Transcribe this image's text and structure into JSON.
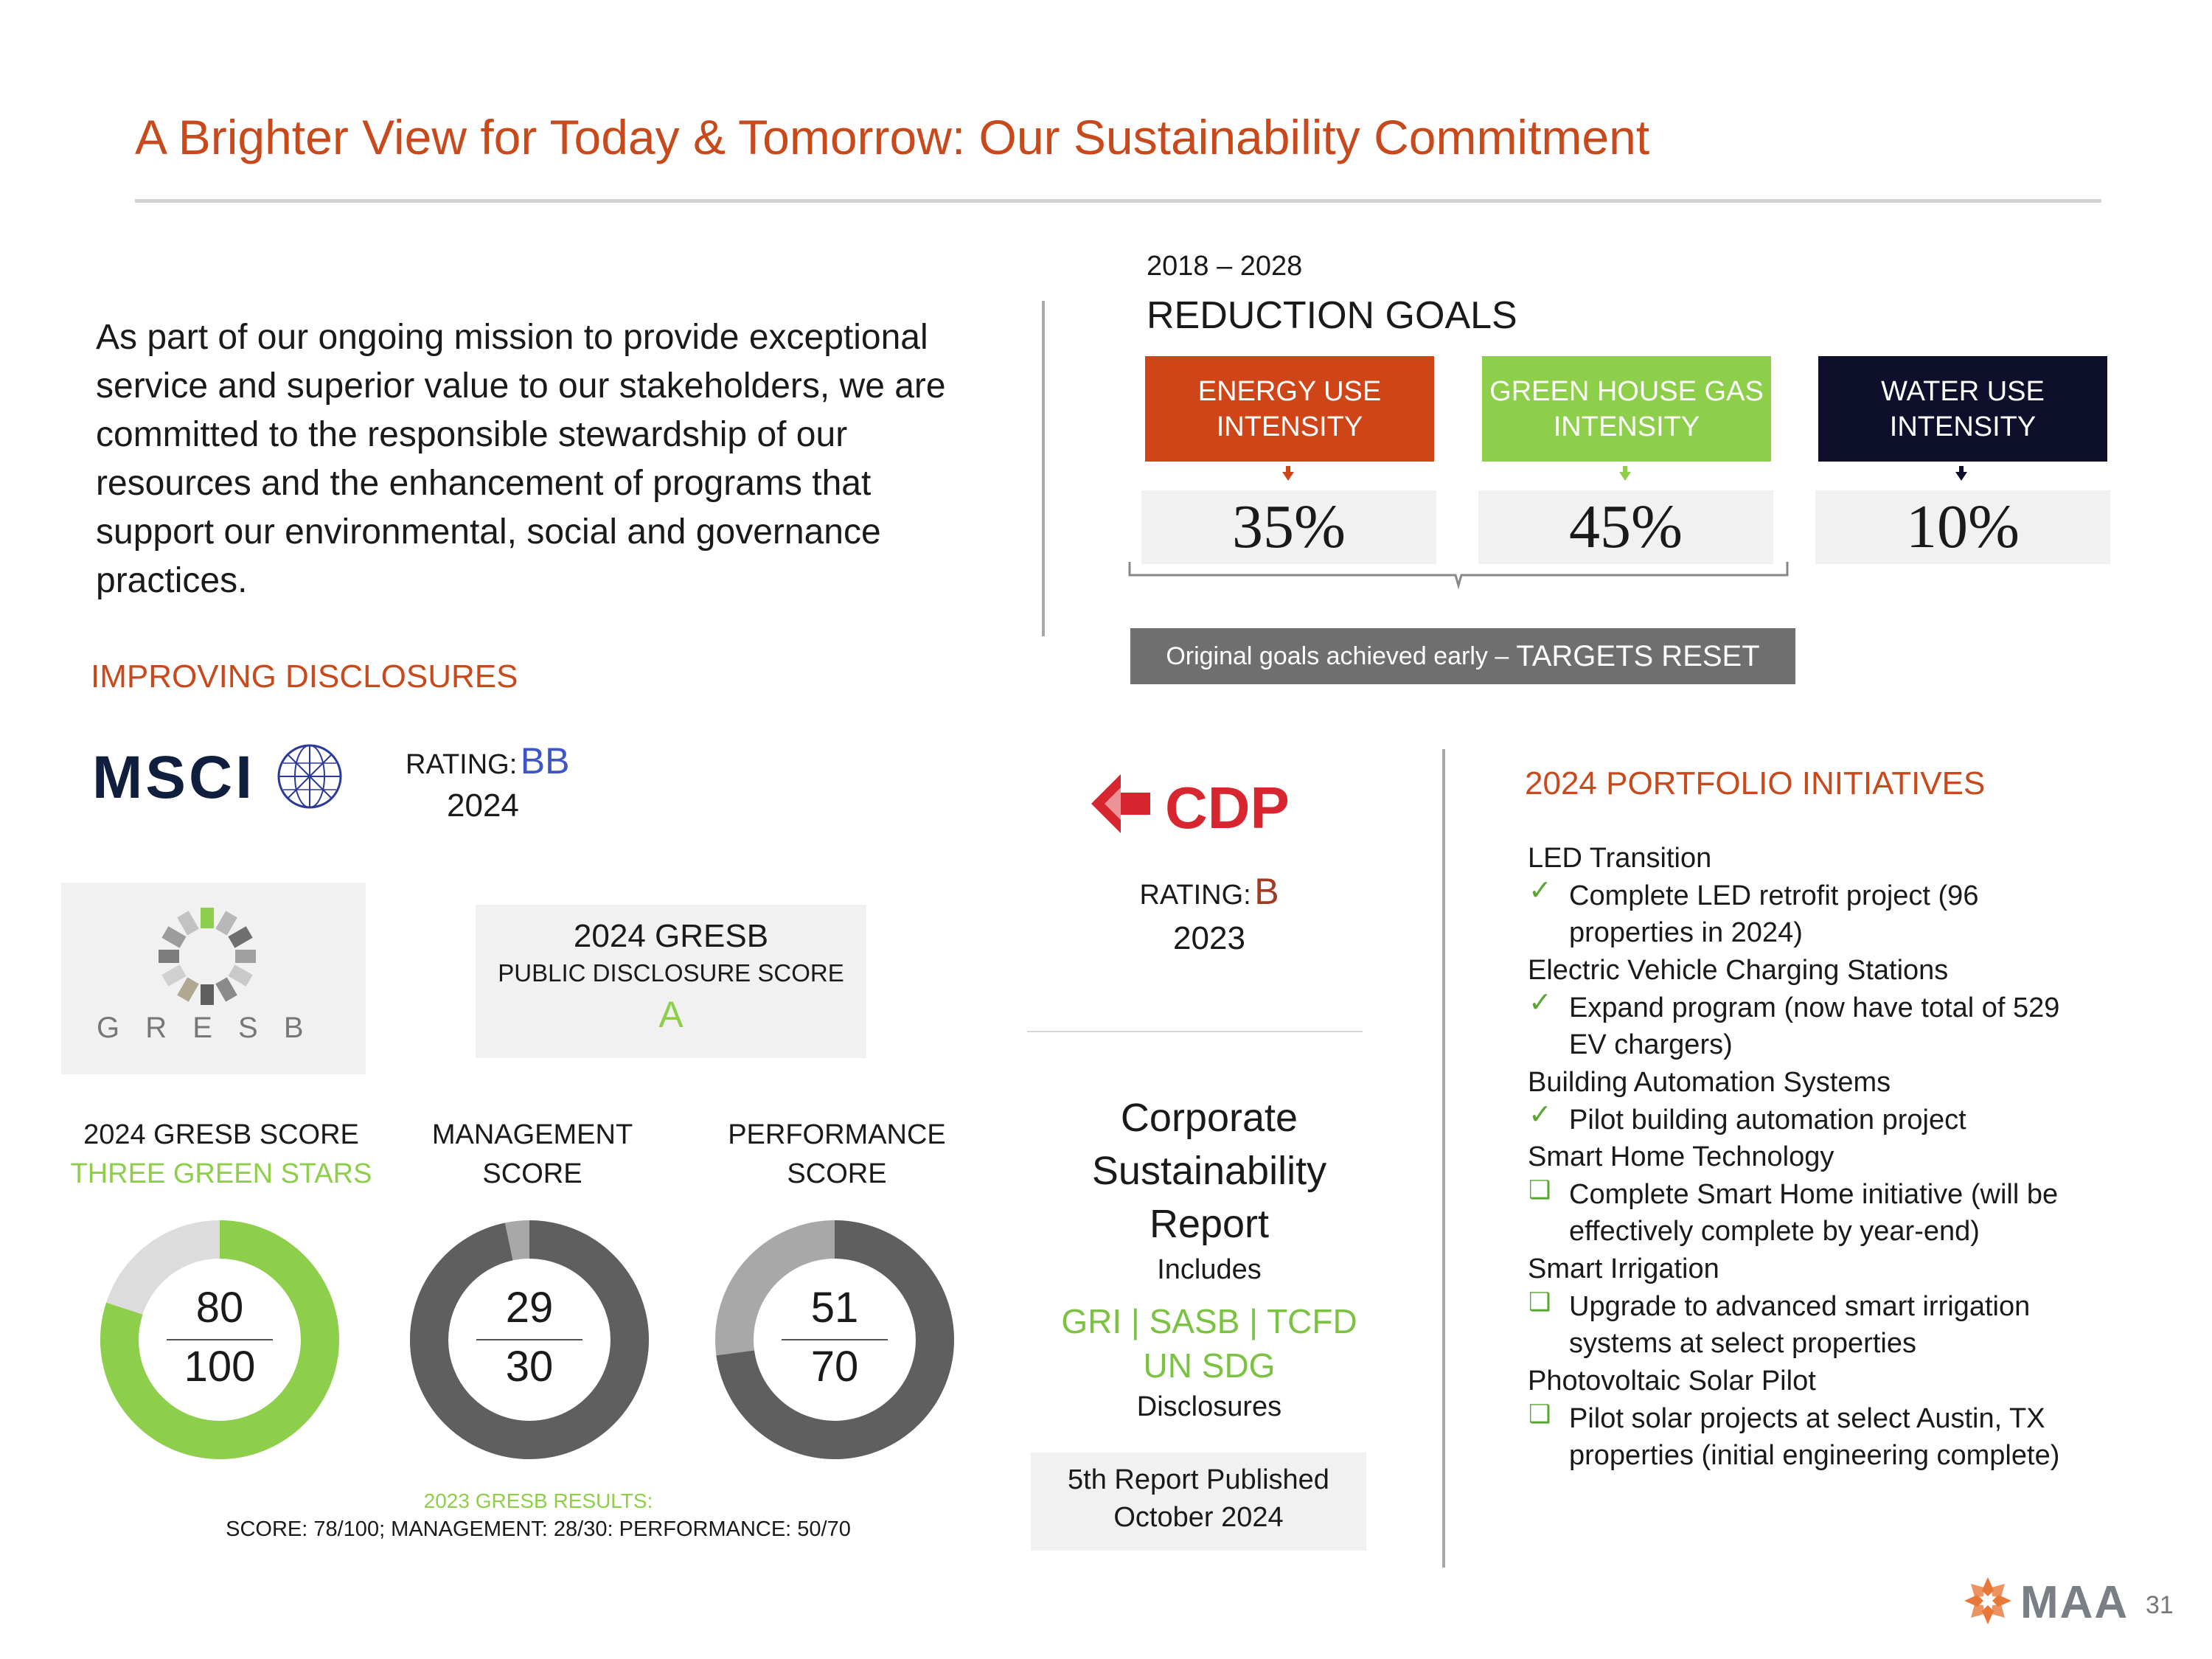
{
  "title": "A Brighter View for Today & Tomorrow: Our Sustainability Commitment",
  "intro_lines": [
    "As part of our ongoing mission to provide exceptional",
    "service and superior value to our stakeholders, we are",
    "committed to the responsible stewardship of our",
    "resources and the enhancement of programs that",
    "support our environmental, social and governance",
    "practices."
  ],
  "reduction": {
    "period": "2018 – 2028",
    "title": "REDUCTION GOALS",
    "goals": [
      {
        "line1": "ENERGY USE",
        "line2": "INTENSITY",
        "value": "35%",
        "color": "#cf4518"
      },
      {
        "line1": "GREEN HOUSE GAS",
        "line2": "INTENSITY",
        "value": "45%",
        "color": "#8dce4a"
      },
      {
        "line1": "WATER USE",
        "line2": "INTENSITY",
        "value": "10%",
        "color": "#0d0f2b"
      }
    ],
    "note_small": "Original goals achieved early –",
    "note_big": "TARGETS RESET"
  },
  "disclosures": {
    "heading": "IMPROVING DISCLOSURES",
    "msci": {
      "logo_text": "MSCI",
      "rating_label": "RATING:",
      "rating": "BB",
      "year": "2024"
    },
    "cdp": {
      "logo_text": "CDP",
      "rating_label": "RATING:",
      "rating": "B",
      "year": "2023"
    },
    "gresb_logo_text": "G R E S B",
    "gresb_public": {
      "line1": "2024 GRESB",
      "line2": "PUBLIC DISCLOSURE SCORE",
      "grade": "A"
    }
  },
  "scores": [
    {
      "title1": "2024 GRESB SCORE",
      "title2": "THREE GREEN STARS",
      "score": 80,
      "max": 100,
      "score_label": "80",
      "max_label": "100",
      "color": "#8dce4a",
      "track": "#dcdcdc"
    },
    {
      "title1": "MANAGEMENT",
      "title2": "SCORE",
      "score": 29,
      "max": 30,
      "score_label": "29",
      "max_label": "30",
      "color": "#5f5f5f",
      "track": "#a8a8a8"
    },
    {
      "title1": "PERFORMANCE",
      "title2": "SCORE",
      "score": 51,
      "max": 70,
      "score_label": "51",
      "max_label": "70",
      "color": "#5f5f5f",
      "track": "#a8a8a8"
    }
  ],
  "prior_results": {
    "label": "2023 GRESB RESULTS:",
    "text": "SCORE: 78/100; MANAGEMENT: 28/30: PERFORMANCE: 50/70"
  },
  "report": {
    "line1": "Corporate",
    "line2": "Sustainability",
    "line3": "Report",
    "includes": "Includes",
    "frameworks1": "GRI | SASB | TCFD",
    "frameworks2": "UN SDG",
    "disclosures": "Disclosures",
    "published1": "5th Report Published",
    "published2": "October 2024"
  },
  "initiatives": {
    "heading": "2024 PORTFOLIO INITIATIVES",
    "items": [
      {
        "category": "LED Transition",
        "mark": "✓",
        "line1": "Complete LED retrofit project (96",
        "line2": "properties in 2024)"
      },
      {
        "category": "Electric Vehicle Charging Stations",
        "mark": "✓",
        "line1": "Expand program (now have total of 529",
        "line2": "EV chargers)"
      },
      {
        "category": "Building Automation Systems",
        "mark": "✓",
        "line1": "Pilot building automation project",
        "line2": ""
      },
      {
        "category": "Smart Home Technology",
        "mark": "❑",
        "line1": "Complete Smart Home initiative (will be",
        "line2": "effectively complete by year-end)"
      },
      {
        "category": "Smart Irrigation",
        "mark": "❑",
        "line1": "Upgrade to advanced smart irrigation",
        "line2": "systems at select properties"
      },
      {
        "category": "Photovoltaic Solar Pilot",
        "mark": "❑",
        "line1": "Pilot solar projects at select Austin, TX",
        "line2": "properties (initial engineering complete)"
      }
    ]
  },
  "footer": {
    "logo_text": "MAA",
    "page": "31"
  }
}
